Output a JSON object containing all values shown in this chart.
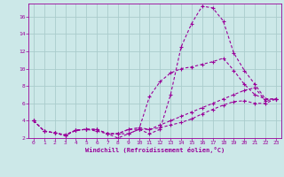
{
  "xlabel": "Windchill (Refroidissement éolien,°C)",
  "ylabel": "",
  "bg_color": "#cce8e8",
  "grid_color": "#aacccc",
  "line_color": "#990099",
  "xlim": [
    -0.5,
    23.5
  ],
  "ylim": [
    2,
    17.5
  ],
  "xticks": [
    0,
    1,
    2,
    3,
    4,
    5,
    6,
    7,
    8,
    9,
    10,
    11,
    12,
    13,
    14,
    15,
    16,
    17,
    18,
    19,
    20,
    21,
    22,
    23
  ],
  "yticks": [
    2,
    4,
    6,
    8,
    10,
    12,
    14,
    16
  ],
  "series": [
    [
      4.0,
      2.8,
      2.6,
      2.3,
      2.9,
      3.0,
      3.0,
      2.5,
      2.5,
      3.0,
      3.0,
      2.5,
      3.0,
      7.0,
      12.5,
      15.2,
      17.2,
      17.0,
      15.5,
      11.8,
      9.8,
      8.2,
      6.5,
      6.5
    ],
    [
      4.0,
      2.8,
      2.6,
      2.3,
      2.9,
      3.0,
      3.0,
      2.5,
      2.0,
      2.5,
      3.0,
      6.8,
      8.5,
      9.5,
      10.0,
      10.2,
      10.5,
      10.8,
      11.2,
      9.8,
      8.2,
      7.0,
      6.5,
      6.5
    ],
    [
      4.0,
      2.8,
      2.6,
      2.3,
      2.9,
      3.0,
      3.0,
      2.5,
      2.5,
      3.0,
      3.2,
      3.0,
      3.5,
      4.0,
      4.5,
      5.0,
      5.5,
      6.0,
      6.5,
      7.0,
      7.5,
      7.8,
      6.3,
      6.5
    ],
    [
      4.0,
      2.8,
      2.6,
      2.4,
      2.9,
      3.0,
      2.8,
      2.5,
      2.5,
      2.5,
      3.0,
      3.0,
      3.2,
      3.5,
      3.8,
      4.2,
      4.8,
      5.3,
      5.8,
      6.2,
      6.3,
      6.0,
      6.0,
      6.5
    ]
  ]
}
